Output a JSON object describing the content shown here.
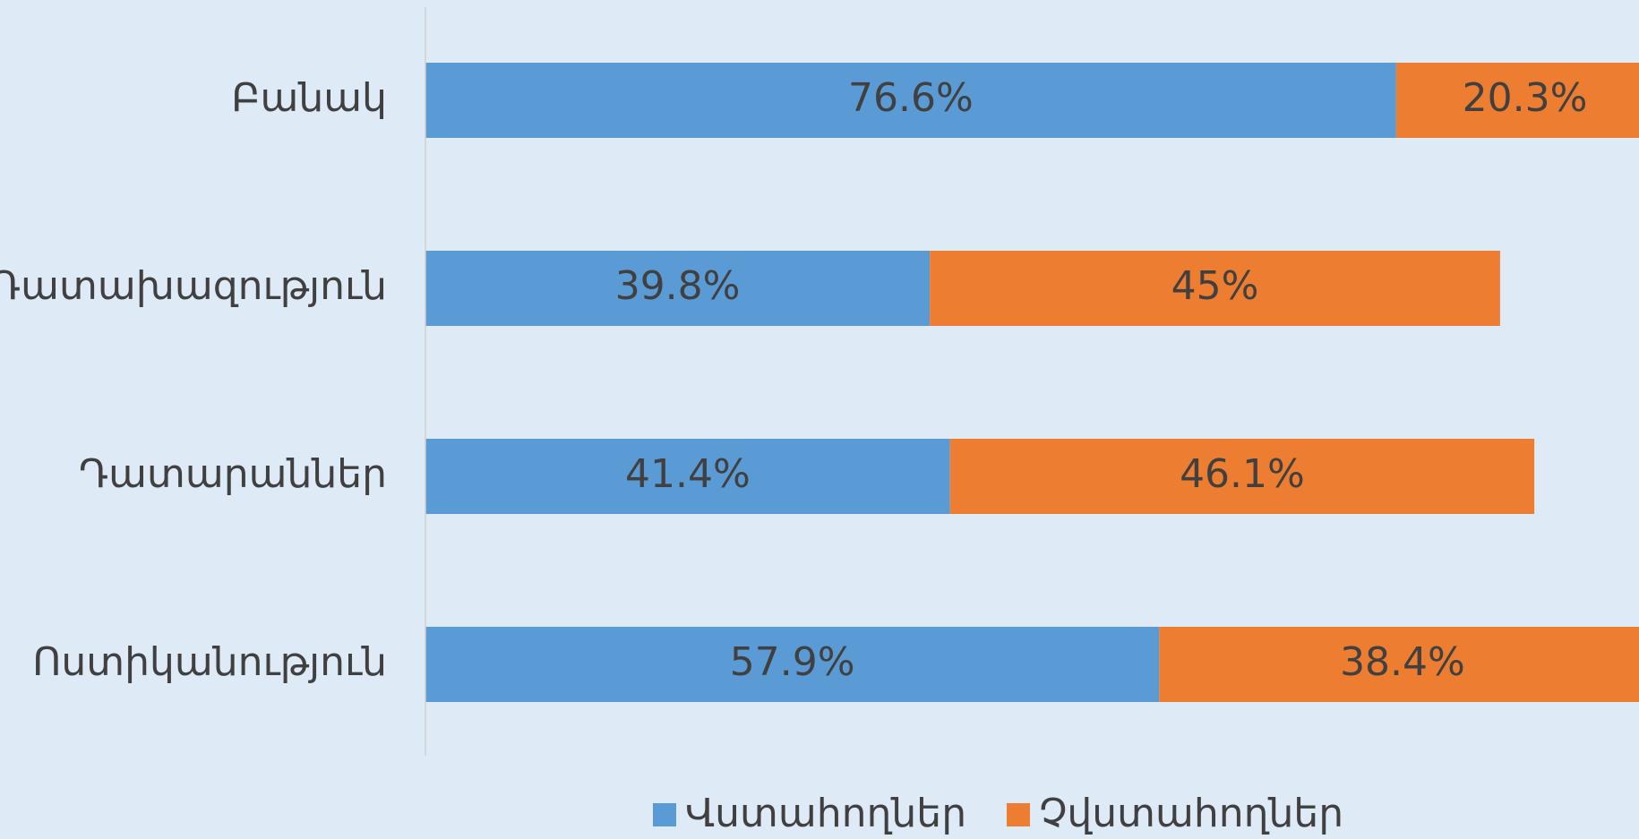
{
  "chart_data": {
    "type": "stacked-bar-horizontal",
    "categories": [
      "Բանակ",
      "Դատախազություն",
      "Դատարաններ",
      "Ոստիկանություն"
    ],
    "series": [
      {
        "name": "Վստահողներ",
        "color": "#5b9bd5",
        "values": [
          76.6,
          39.8,
          41.4,
          57.9
        ],
        "value_labels": [
          "76.6%",
          "39.8%",
          "41.4%",
          "57.9%"
        ]
      },
      {
        "name": "Չվստահողներ",
        "color": "#ed7d31",
        "values": [
          20.3,
          45,
          46.1,
          38.4
        ],
        "value_labels": [
          "20.3%",
          "45%",
          "46.1%",
          "38.4%"
        ]
      }
    ],
    "legend": "bottom"
  }
}
